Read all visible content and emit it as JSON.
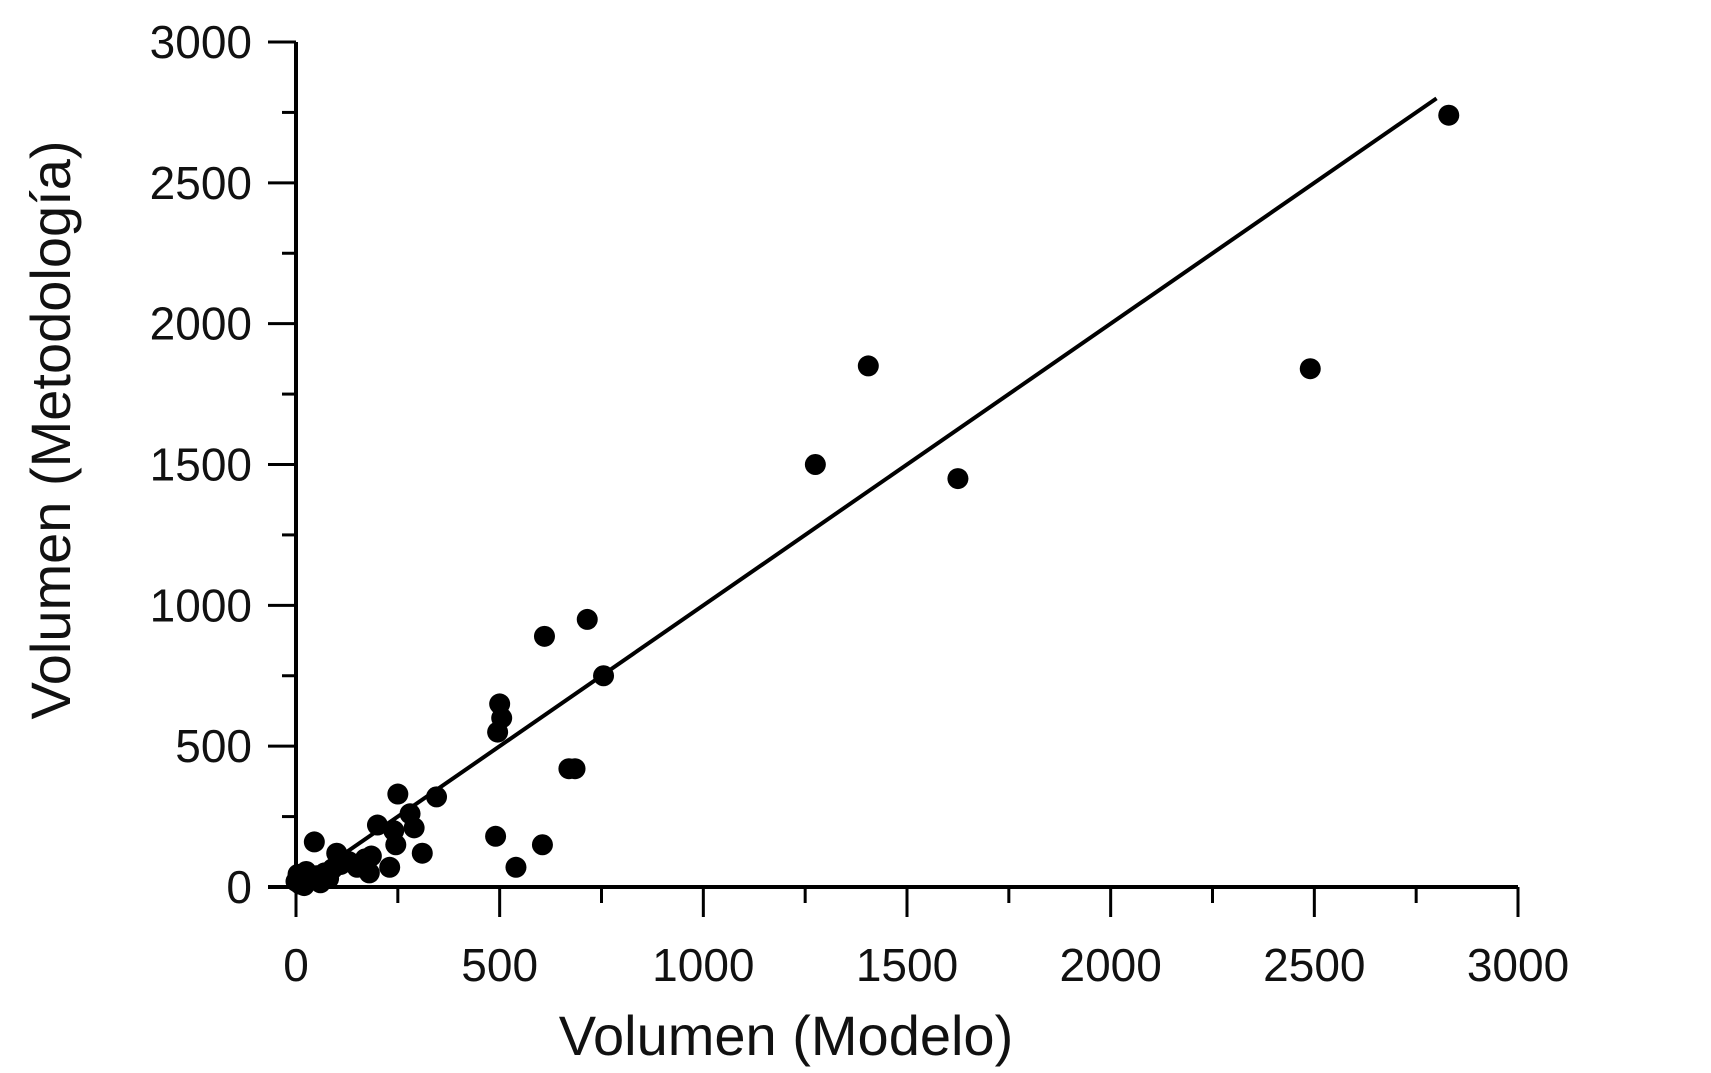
{
  "chart_data": {
    "type": "scatter",
    "xlabel": "Volumen (Modelo)",
    "ylabel": "Volumen (Metodología)",
    "xlim": [
      0,
      3000
    ],
    "ylim": [
      0,
      3000
    ],
    "x_ticks": [
      "0",
      "500",
      "1000",
      "1500",
      "2000",
      "2500",
      "3000"
    ],
    "y_ticks": [
      "0",
      "500",
      "1000",
      "1500",
      "2000",
      "2500",
      "3000"
    ],
    "grid": false,
    "colors": {
      "points": "#000000",
      "line": "#000000",
      "axes": "#000000"
    },
    "series": [
      {
        "points": [
          [
            0,
            20
          ],
          [
            5,
            45
          ],
          [
            10,
            10
          ],
          [
            15,
            30
          ],
          [
            20,
            5
          ],
          [
            25,
            55
          ],
          [
            35,
            25
          ],
          [
            45,
            160
          ],
          [
            50,
            40
          ],
          [
            60,
            15
          ],
          [
            70,
            50
          ],
          [
            80,
            30
          ],
          [
            90,
            65
          ],
          [
            100,
            120
          ],
          [
            110,
            80
          ],
          [
            130,
            90
          ],
          [
            150,
            70
          ],
          [
            170,
            100
          ],
          [
            180,
            50
          ],
          [
            185,
            110
          ],
          [
            200,
            220
          ],
          [
            230,
            70
          ],
          [
            240,
            200
          ],
          [
            250,
            330
          ],
          [
            245,
            150
          ],
          [
            280,
            260
          ],
          [
            290,
            210
          ],
          [
            310,
            120
          ],
          [
            345,
            320
          ],
          [
            490,
            180
          ],
          [
            495,
            550
          ],
          [
            500,
            650
          ],
          [
            505,
            600
          ],
          [
            540,
            70
          ],
          [
            605,
            150
          ],
          [
            610,
            890
          ],
          [
            670,
            420
          ],
          [
            685,
            420
          ],
          [
            715,
            950
          ],
          [
            755,
            750
          ],
          [
            1275,
            1500
          ],
          [
            1405,
            1850
          ],
          [
            1625,
            1450
          ],
          [
            2490,
            1840
          ],
          [
            2830,
            2740
          ]
        ]
      }
    ],
    "fit_line": {
      "x": [
        0,
        2800
      ],
      "y": [
        0,
        2800
      ]
    }
  }
}
